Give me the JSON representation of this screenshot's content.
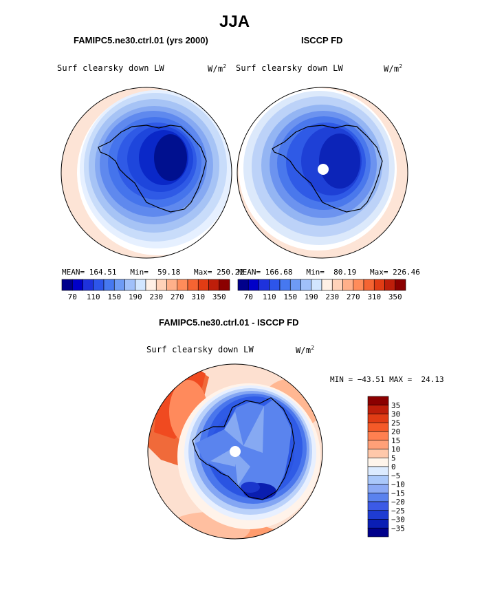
{
  "figure": {
    "main_title": "JJA",
    "panel_left": {
      "title": "FAMIPC5.ne30.ctrl.01 (yrs 2000)",
      "field": "Surf clearsky down LW",
      "units": "W/m",
      "units_sup": "2",
      "stats": "MEAN= 164.51   Min=  59.18   Max= 250.22"
    },
    "panel_right": {
      "title": "ISCCP FD",
      "field": "Surf clearsky down LW",
      "units": "W/m",
      "units_sup": "2",
      "stats": "MEAN= 166.68   Min=  80.19   Max= 226.46"
    },
    "panel_diff": {
      "title": "FAMIPC5.ne30.ctrl.01 - ISCCP FD",
      "field": "Surf clearsky down LW",
      "units": "W/m",
      "units_sup": "2",
      "stats": "MIN = −43.51 MAX =  24.13"
    }
  },
  "chart_data": [
    {
      "type": "heatmap",
      "title": "FAMIPC5.ne30.ctrl.01 (yrs 2000)",
      "colorbar": {
        "orientation": "horizontal",
        "levels": [
          70,
          90,
          110,
          130,
          150,
          170,
          190,
          210,
          230,
          250,
          270,
          290,
          310,
          330,
          350
        ],
        "tick_labels": [
          "70",
          "110",
          "150",
          "190",
          "230",
          "270",
          "310",
          "350"
        ],
        "colors": [
          "#00008b",
          "#0000c8",
          "#1e32dc",
          "#2d55ea",
          "#4678f0",
          "#6e9bf5",
          "#a0c0fa",
          "#d2e6ff",
          "#fff0e6",
          "#ffd2b9",
          "#ffb08a",
          "#ff8c5a",
          "#f56432",
          "#e13c14",
          "#be1e0a",
          "#8b0000"
        ]
      },
      "mean": 164.51,
      "min": 59.18,
      "max": 250.22
    },
    {
      "type": "heatmap",
      "title": "ISCCP FD",
      "colorbar": {
        "orientation": "horizontal",
        "levels": [
          70,
          90,
          110,
          130,
          150,
          170,
          190,
          210,
          230,
          250,
          270,
          290,
          310,
          330,
          350
        ],
        "tick_labels": [
          "70",
          "110",
          "150",
          "190",
          "230",
          "270",
          "310",
          "350"
        ],
        "colors": [
          "#00008b",
          "#0000c8",
          "#1e32dc",
          "#2d55ea",
          "#4678f0",
          "#6e9bf5",
          "#a0c0fa",
          "#d2e6ff",
          "#fff0e6",
          "#ffd2b9",
          "#ffb08a",
          "#ff8c5a",
          "#f56432",
          "#e13c14",
          "#be1e0a",
          "#8b0000"
        ]
      },
      "mean": 166.68,
      "min": 80.19,
      "max": 226.46
    },
    {
      "type": "heatmap",
      "title": "FAMIPC5.ne30.ctrl.01 - ISCCP FD",
      "colorbar": {
        "orientation": "vertical",
        "levels": [
          35,
          30,
          25,
          20,
          15,
          10,
          5,
          0,
          -5,
          -10,
          -15,
          -20,
          -25,
          -30,
          -35
        ],
        "tick_labels": [
          "35",
          "30",
          "25",
          "20",
          "15",
          "10",
          "5",
          "0",
          "−5",
          "−10",
          "−15",
          "−20",
          "−25",
          "−30",
          "−35"
        ],
        "colors": [
          "#8b0000",
          "#be1e0a",
          "#e13c14",
          "#f55a28",
          "#ff8050",
          "#ffa078",
          "#ffc8aa",
          "#fff5eb",
          "#dcebff",
          "#aac8fa",
          "#8caaf5",
          "#5a82ee",
          "#3c5ae6",
          "#1e3cd2",
          "#0a1eb4",
          "#00008b"
        ]
      },
      "min": -43.51,
      "max": 24.13
    }
  ]
}
